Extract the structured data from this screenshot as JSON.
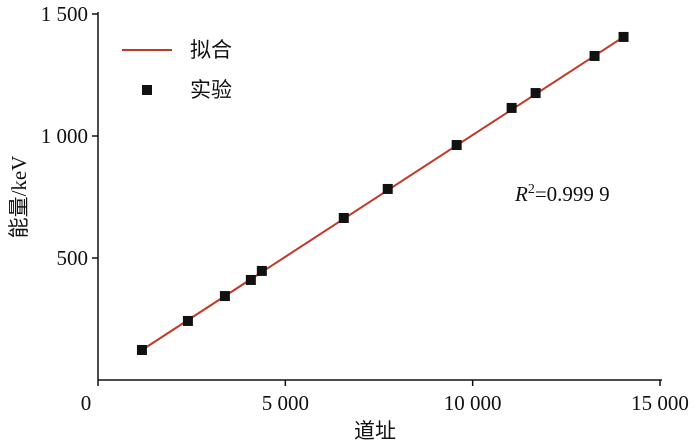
{
  "chart_data": {
    "type": "scatter",
    "x_label": "道址",
    "y_label": "能量/keV",
    "xlim": [
      0,
      15000
    ],
    "ylim": [
      0,
      1500
    ],
    "xticks": [
      0,
      {
        "value": 5000,
        "label": "5 000"
      },
      {
        "value": 10000,
        "label": "10 000"
      },
      {
        "value": 15000,
        "label": "15 000"
      }
    ],
    "yticks": [
      500,
      {
        "value": 1000,
        "label": "1 000"
      },
      {
        "value": 1500,
        "label": "1 500"
      }
    ],
    "legend": "upper left",
    "series": [
      {
        "name": "拟合",
        "kind": "line",
        "color": "#c0392b",
        "x": [
          1173,
          14027
        ],
        "values": [
          123,
          1406
        ]
      },
      {
        "name": "实验",
        "kind": "markers",
        "color": "#111111",
        "x": [
          1173,
          2400,
          3387,
          4080,
          4373,
          6560,
          7733,
          9573,
          11040,
          11680,
          13253,
          14027
        ],
        "values": [
          123,
          242,
          344,
          410,
          447,
          664,
          783,
          963,
          1115,
          1176,
          1328,
          1406
        ]
      }
    ],
    "annotation": {
      "base": "R",
      "sup": "2",
      "rest": "=0.999 9"
    }
  }
}
